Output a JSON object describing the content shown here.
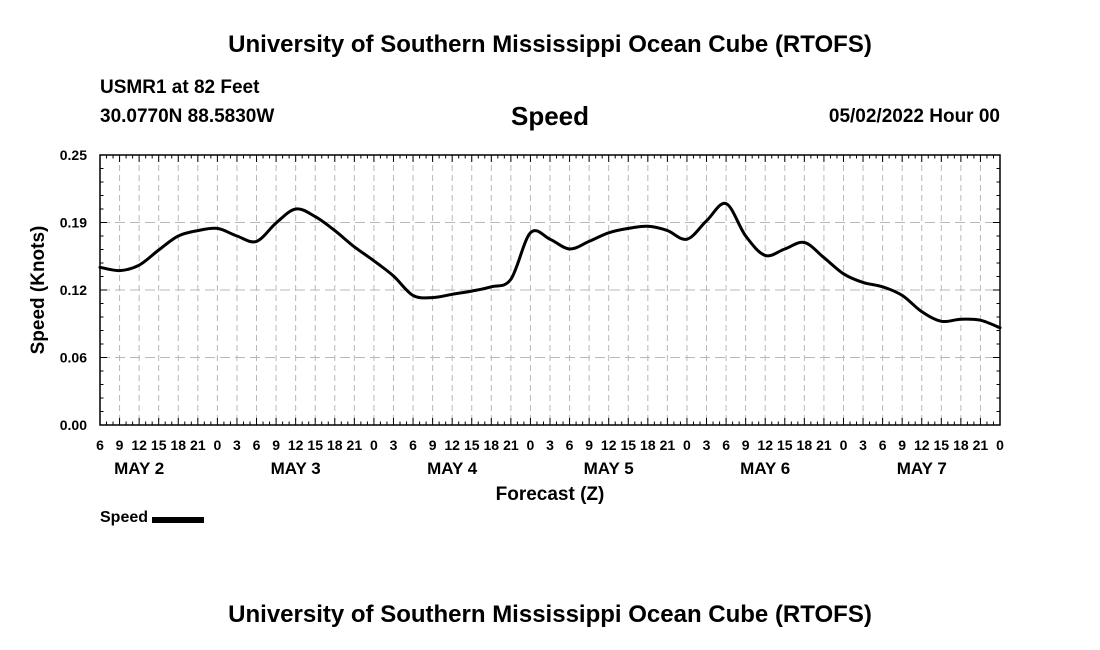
{
  "header": {
    "title": "University of Southern Mississippi Ocean Cube (RTOFS)",
    "station": "USMR1 at 82 Feet",
    "coords": "30.0770N  88.5830W",
    "variable": "Speed",
    "datetime": "05/02/2022 Hour 00"
  },
  "footer": {
    "title": "University of Southern Mississippi Ocean Cube (RTOFS)"
  },
  "legend": {
    "label": "Speed"
  },
  "chart_data": {
    "type": "line",
    "title": "Speed",
    "xlabel": "Forecast (Z)",
    "ylabel": "Speed (Knots)",
    "ylim": [
      0,
      0.25
    ],
    "y_ticks": [
      "0.00",
      "0.06",
      "0.12",
      "0.19",
      "0.25"
    ],
    "y_tick_values": [
      0,
      0.0625,
      0.125,
      0.1875,
      0.25
    ],
    "x_start_hour": 6,
    "x_end_hour": 144,
    "x_tick_labels": [
      "6",
      "9",
      "12",
      "15",
      "18",
      "21",
      "0",
      "3",
      "6",
      "9",
      "12",
      "15",
      "18",
      "21",
      "0",
      "3",
      "6",
      "9",
      "12",
      "15",
      "18",
      "21",
      "0",
      "3",
      "6",
      "9",
      "12",
      "15",
      "18",
      "21",
      "0",
      "3",
      "6",
      "9",
      "12",
      "15",
      "18",
      "21",
      "0",
      "3",
      "6",
      "9",
      "12",
      "15",
      "18",
      "21",
      "0"
    ],
    "day_labels": [
      "MAY 2",
      "MAY 3",
      "MAY 4",
      "MAY 5",
      "MAY 6",
      "MAY 7"
    ],
    "grid": true,
    "series": [
      {
        "name": "Speed",
        "color": "#000000",
        "x_hours": [
          6,
          9,
          12,
          15,
          18,
          21,
          24,
          27,
          30,
          33,
          36,
          39,
          42,
          45,
          48,
          51,
          54,
          57,
          60,
          63,
          66,
          69,
          72,
          75,
          78,
          81,
          84,
          87,
          90,
          93,
          96,
          99,
          102,
          105,
          108,
          111,
          114,
          117,
          120,
          123,
          126,
          129,
          132,
          135,
          138,
          141,
          144
        ],
        "values": [
          0.146,
          0.143,
          0.148,
          0.162,
          0.175,
          0.18,
          0.182,
          0.175,
          0.17,
          0.187,
          0.2,
          0.193,
          0.18,
          0.165,
          0.152,
          0.138,
          0.12,
          0.118,
          0.121,
          0.124,
          0.128,
          0.135,
          0.178,
          0.172,
          0.163,
          0.17,
          0.178,
          0.182,
          0.184,
          0.18,
          0.172,
          0.189,
          0.205,
          0.175,
          0.157,
          0.163,
          0.169,
          0.155,
          0.14,
          0.132,
          0.128,
          0.12,
          0.105,
          0.096,
          0.098,
          0.097,
          0.09
        ]
      }
    ]
  }
}
